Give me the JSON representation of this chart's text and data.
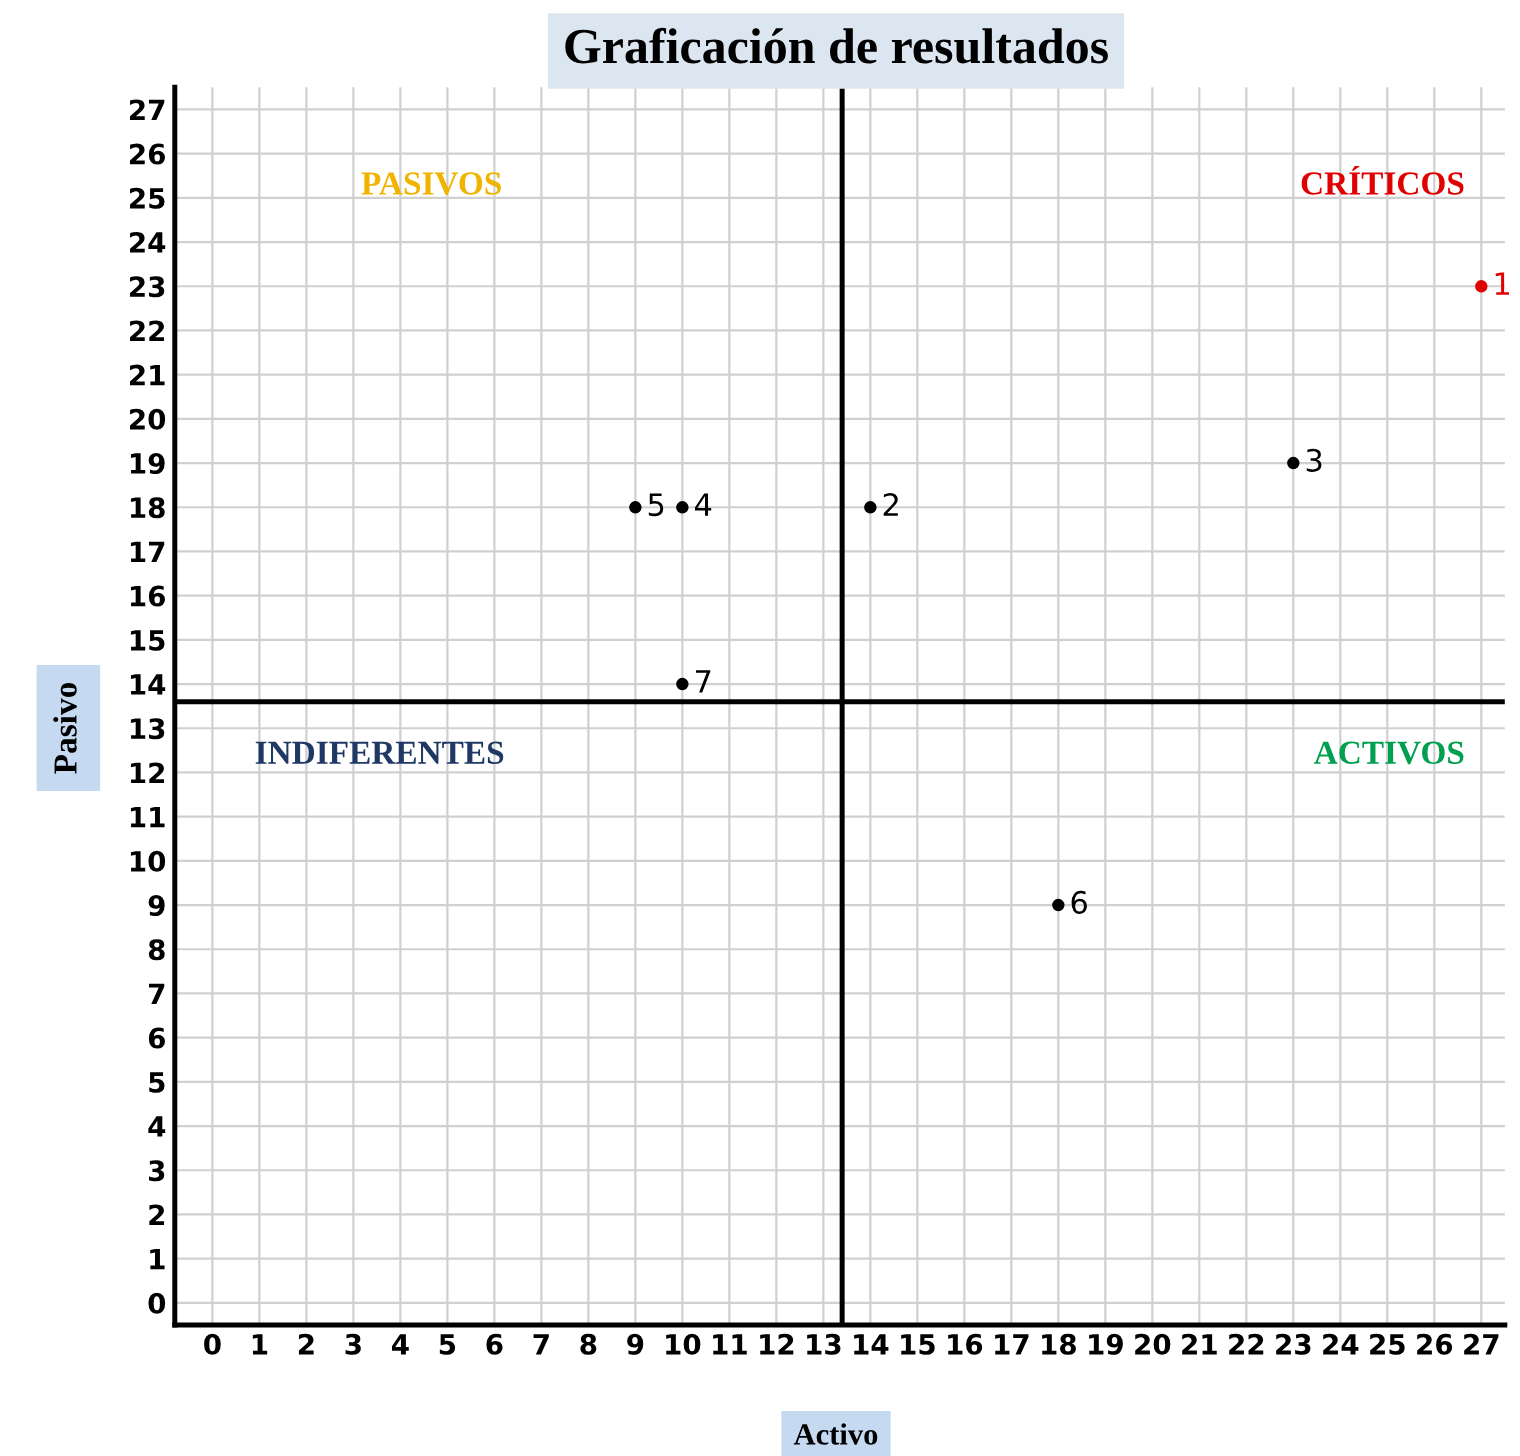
{
  "chart_data": {
    "type": "scatter",
    "title": "Graficación de resultados",
    "xlabel": "Activo",
    "ylabel": "Pasivo",
    "xlim": [
      -0.8,
      27.5
    ],
    "ylim": [
      -0.5,
      27.5
    ],
    "xticks": [
      0,
      1,
      2,
      3,
      4,
      5,
      6,
      7,
      8,
      9,
      10,
      11,
      12,
      13,
      14,
      15,
      16,
      17,
      18,
      19,
      20,
      21,
      22,
      23,
      24,
      25,
      26,
      27
    ],
    "yticks": [
      0,
      1,
      2,
      3,
      4,
      5,
      6,
      7,
      8,
      9,
      10,
      11,
      12,
      13,
      14,
      15,
      16,
      17,
      18,
      19,
      20,
      21,
      22,
      23,
      24,
      25,
      26,
      27
    ],
    "grid": true,
    "marker": "circle",
    "legend": false,
    "ref_lines": [
      {
        "axis": "x",
        "value": 13.4,
        "color": "#000000"
      },
      {
        "axis": "y",
        "value": 13.6,
        "color": "#000000"
      }
    ],
    "annotations": [
      "PASIVOS",
      "CRÍTICOS",
      "INDIFERENTES",
      "ACTIVOS"
    ],
    "series": [
      {
        "name": "1",
        "color": "#e00000",
        "x": [
          27
        ],
        "values": [
          23
        ]
      },
      {
        "name": "2",
        "color": "#000000",
        "x": [
          14
        ],
        "values": [
          18
        ]
      },
      {
        "name": "3",
        "color": "#000000",
        "x": [
          23
        ],
        "values": [
          19
        ]
      },
      {
        "name": "4",
        "color": "#000000",
        "x": [
          10
        ],
        "values": [
          18
        ]
      },
      {
        "name": "5",
        "color": "#000000",
        "x": [
          9
        ],
        "values": [
          18
        ]
      },
      {
        "name": "6",
        "color": "#000000",
        "x": [
          18
        ],
        "values": [
          9
        ]
      },
      {
        "name": "7",
        "color": "#000000",
        "x": [
          10
        ],
        "values": [
          14
        ]
      }
    ]
  }
}
